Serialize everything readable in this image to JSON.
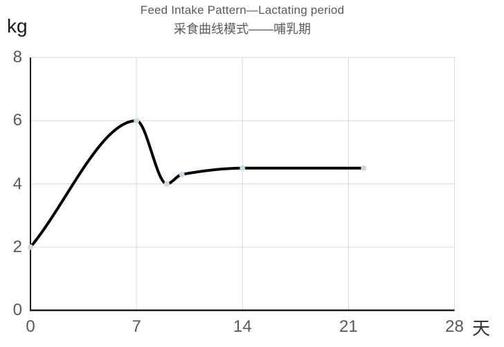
{
  "chart_data": {
    "type": "line",
    "title": "Feed Intake Pattern—Lactating period",
    "subtitle": "采食曲线模式——哺乳期",
    "y_unit_label": "kg",
    "x_unit_label": "天",
    "points": [
      [
        0,
        2
      ],
      [
        7,
        6
      ],
      [
        9,
        4
      ],
      [
        10,
        4.3
      ],
      [
        14,
        4.5
      ],
      [
        22,
        4.5
      ]
    ],
    "x_ticks": [
      0,
      7,
      14,
      21,
      28
    ],
    "y_ticks": [
      0,
      2,
      4,
      6,
      8
    ],
    "xlim": [
      0,
      28
    ],
    "ylim": [
      0,
      8
    ],
    "grid": true,
    "legend": "none",
    "line_color": "#000000",
    "line_width": 4,
    "marker_color": "#c8dce0",
    "marker_radius": 4,
    "gridline_color": "#d9d9d9",
    "axis_color": "#1a1a1a",
    "tick_label_color": "#595959",
    "title_color": "#595959"
  }
}
